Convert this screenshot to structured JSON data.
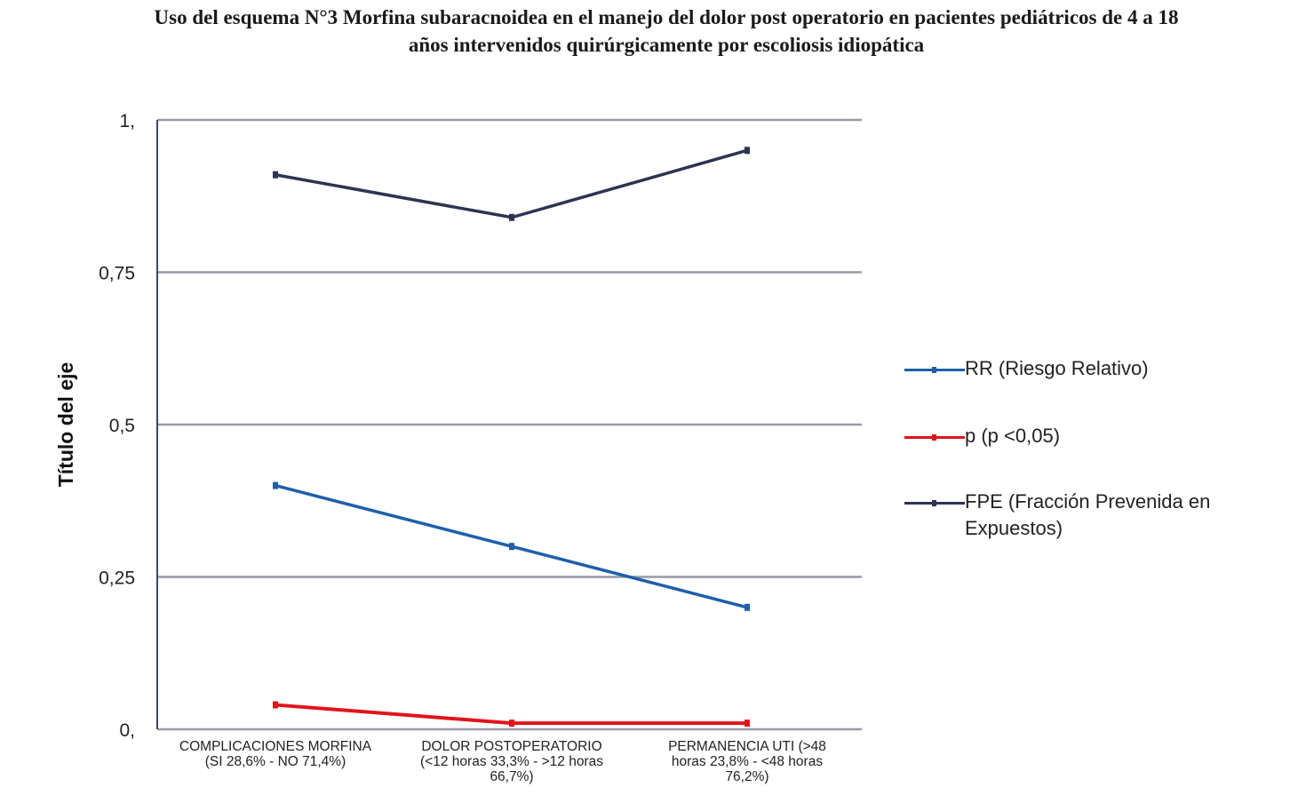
{
  "chart_data": {
    "type": "line",
    "title": "Uso del esquema N°3 Morfina subaracnoidea en el manejo del dolor post operatorio en pacientes pediátricos de 4 a 18 años intervenidos quirúrgicamente  por escoliosis idiopática",
    "xlabel": "",
    "ylabel": "Título del eje",
    "ylim": [
      0,
      1
    ],
    "yticks": [
      0,
      0.25,
      0.5,
      0.75,
      1
    ],
    "ytick_labels": [
      "0,",
      "0,25",
      "0,5",
      "0,75",
      "1,"
    ],
    "grid": true,
    "legend_position": "right",
    "categories": [
      [
        "COMPLICACIONES MORFINA",
        "(SI 28,6% - NO 71,4%)"
      ],
      [
        "DOLOR POSTOPERATORIO",
        "(<12 horas 33,3% - >12 horas",
        "66,7%)"
      ],
      [
        "PERMANENCIA UTI (>48",
        "horas 23,8% - <48 horas",
        "76,2%)"
      ]
    ],
    "series": [
      {
        "name": "RR (Riesgo Relativo)",
        "color": "#1f5faa",
        "values": [
          0.4,
          0.3,
          0.2
        ]
      },
      {
        "name": "p (p <0,05)",
        "color": "#e0141c",
        "values": [
          0.04,
          0.01,
          0.01
        ]
      },
      {
        "name": "FPE (Fracción Prevenida en Expuestos)",
        "color": "#2b3552",
        "values": [
          0.91,
          0.84,
          0.95
        ]
      }
    ]
  },
  "legend": {
    "items": [
      {
        "label": "RR (Riesgo Relativo)"
      },
      {
        "label": "p (p <0,05)"
      },
      {
        "label": "FPE (Fracción Prevenida en Expuestos)"
      }
    ]
  },
  "colors": {
    "grid": "#9a9aa6",
    "axis": "#3a4a5c"
  }
}
